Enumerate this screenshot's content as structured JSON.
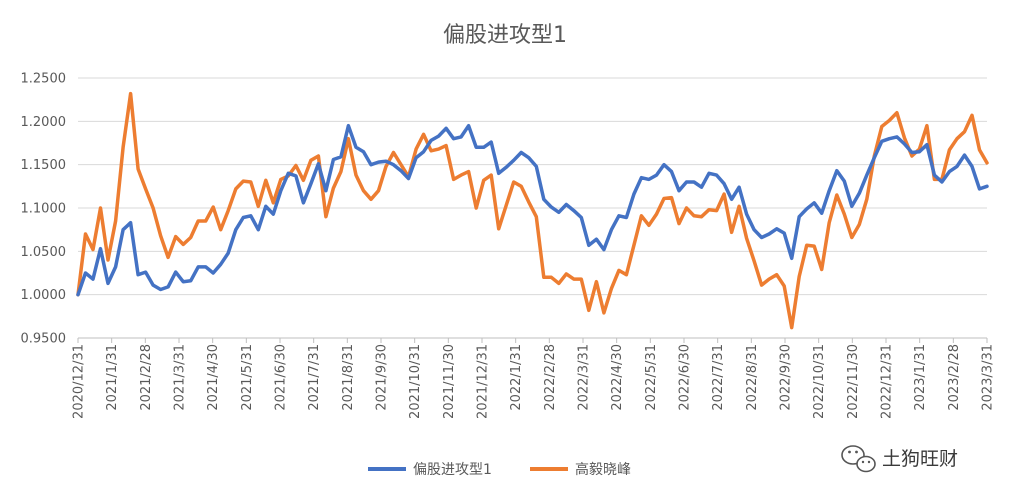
{
  "chart_data": {
    "type": "line",
    "title": "偏股进攻型1",
    "xlabel": "",
    "ylabel": "",
    "ylim": [
      0.95,
      1.25
    ],
    "yticks": [
      "0.9500",
      "1.0000",
      "1.0500",
      "1.1000",
      "1.1500",
      "1.2000",
      "1.2500"
    ],
    "ytick_values": [
      0.95,
      1.0,
      1.05,
      1.1,
      1.15,
      1.2,
      1.25
    ],
    "x_tick_labels": [
      "2020/12/31",
      "2021/1/31",
      "2021/2/28",
      "2021/3/31",
      "2021/4/30",
      "2021/5/31",
      "2021/6/30",
      "2021/7/31",
      "2021/8/31",
      "2021/9/30",
      "2021/10/31",
      "2021/11/30",
      "2021/12/31",
      "2022/1/31",
      "2022/2/28",
      "2022/3/31",
      "2022/4/30",
      "2022/5/31",
      "2022/6/30",
      "2022/7/31",
      "2022/8/31",
      "2022/9/30",
      "2022/10/31",
      "2022/11/30",
      "2022/12/31",
      "2023/1/31",
      "2023/2/28",
      "2023/3/31"
    ],
    "grid": true,
    "legend_position": "bottom",
    "series": [
      {
        "name": "偏股进攻型1",
        "color": "#4472C4",
        "values": [
          1.0,
          1.025,
          1.018,
          1.053,
          1.013,
          1.032,
          1.075,
          1.083,
          1.023,
          1.026,
          1.011,
          1.006,
          1.009,
          1.026,
          1.015,
          1.016,
          1.032,
          1.032,
          1.025,
          1.035,
          1.048,
          1.075,
          1.089,
          1.091,
          1.075,
          1.102,
          1.093,
          1.12,
          1.14,
          1.137,
          1.106,
          1.128,
          1.151,
          1.12,
          1.156,
          1.159,
          1.195,
          1.17,
          1.165,
          1.15,
          1.153,
          1.154,
          1.15,
          1.143,
          1.134,
          1.158,
          1.165,
          1.178,
          1.183,
          1.192,
          1.18,
          1.182,
          1.195,
          1.17,
          1.17,
          1.176,
          1.14,
          1.147,
          1.155,
          1.164,
          1.158,
          1.148,
          1.11,
          1.101,
          1.095,
          1.104,
          1.097,
          1.089,
          1.057,
          1.064,
          1.052,
          1.075,
          1.091,
          1.089,
          1.116,
          1.135,
          1.133,
          1.138,
          1.15,
          1.142,
          1.12,
          1.13,
          1.13,
          1.124,
          1.14,
          1.138,
          1.128,
          1.11,
          1.124,
          1.093,
          1.075,
          1.066,
          1.07,
          1.076,
          1.071,
          1.042,
          1.09,
          1.099,
          1.106,
          1.094,
          1.12,
          1.143,
          1.131,
          1.102,
          1.117,
          1.138,
          1.158,
          1.177,
          1.18,
          1.182,
          1.174,
          1.164,
          1.165,
          1.173,
          1.138,
          1.13,
          1.142,
          1.148,
          1.161,
          1.148,
          1.122,
          1.125
        ]
      },
      {
        "name": "高毅晓峰",
        "color": "#ED7D31",
        "values": [
          1.0,
          1.07,
          1.052,
          1.1,
          1.04,
          1.085,
          1.17,
          1.232,
          1.145,
          1.122,
          1.1,
          1.068,
          1.043,
          1.067,
          1.058,
          1.066,
          1.085,
          1.085,
          1.101,
          1.075,
          1.097,
          1.122,
          1.131,
          1.13,
          1.102,
          1.132,
          1.106,
          1.133,
          1.137,
          1.149,
          1.132,
          1.155,
          1.16,
          1.09,
          1.123,
          1.142,
          1.18,
          1.138,
          1.12,
          1.11,
          1.12,
          1.148,
          1.164,
          1.15,
          1.136,
          1.168,
          1.185,
          1.166,
          1.168,
          1.172,
          1.133,
          1.138,
          1.142,
          1.1,
          1.132,
          1.138,
          1.076,
          1.103,
          1.13,
          1.125,
          1.107,
          1.09,
          1.02,
          1.02,
          1.013,
          1.024,
          1.018,
          1.018,
          0.982,
          1.015,
          0.979,
          1.007,
          1.028,
          1.023,
          1.057,
          1.091,
          1.08,
          1.093,
          1.111,
          1.112,
          1.082,
          1.1,
          1.091,
          1.09,
          1.098,
          1.097,
          1.116,
          1.072,
          1.102,
          1.065,
          1.039,
          1.011,
          1.018,
          1.023,
          1.01,
          0.962,
          1.021,
          1.057,
          1.056,
          1.029,
          1.083,
          1.115,
          1.093,
          1.066,
          1.081,
          1.11,
          1.16,
          1.194,
          1.201,
          1.21,
          1.181,
          1.16,
          1.168,
          1.195,
          1.133,
          1.133,
          1.167,
          1.18,
          1.188,
          1.207,
          1.167,
          1.152
        ]
      }
    ]
  },
  "watermark": {
    "text": "土狗旺财",
    "icon": "wechat-icon"
  },
  "colors": {
    "gridline": "#D9D9D9",
    "axis": "#BFBFBF",
    "text": "#595959",
    "series1": "#4472C4",
    "series2": "#ED7D31"
  }
}
